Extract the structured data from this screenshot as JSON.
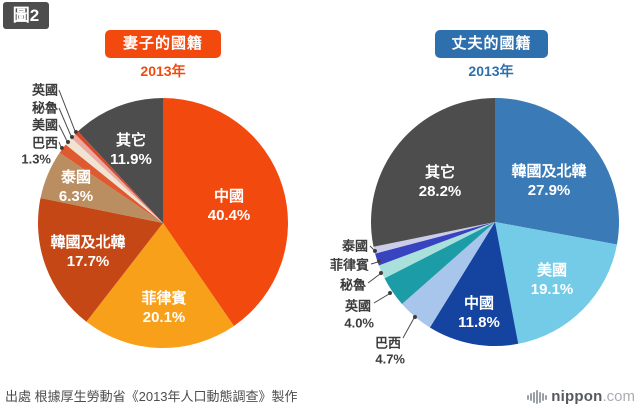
{
  "figure_badge": "圖2",
  "source_note": "出處 根據厚生勞動省《2013年人口動態調查》製作",
  "brand": {
    "icon": "soundwave-bars-icon",
    "name": "nippon",
    "suffix": ".com"
  },
  "chart_data": [
    {
      "type": "pie",
      "title": "妻子的國籍",
      "subtitle": "2013年",
      "accent_color": "#F2490F",
      "legend_position": "none",
      "start_angle_deg": 0,
      "direction": "clockwise",
      "slices": [
        {
          "label": "中國",
          "value": 40.4,
          "pct": "40.4%",
          "color": "#F2490F"
        },
        {
          "label": "菲律賓",
          "value": 20.1,
          "pct": "20.1%",
          "color": "#F9A01B"
        },
        {
          "label": "韓國及北韓",
          "value": 17.7,
          "pct": "17.7%",
          "color": "#C54716"
        },
        {
          "label": "泰國",
          "value": 6.3,
          "pct": "6.3%",
          "color": "#BA8E60"
        },
        {
          "label": "巴西",
          "value": 1.3,
          "pct": "1.3%",
          "color": "#E05A31"
        },
        {
          "label": "美國",
          "value": 1.1,
          "color": "#F0E3D1"
        },
        {
          "label": "秘魯",
          "value": 0.7,
          "color": "#ECA9A0"
        },
        {
          "label": "英國",
          "value": 0.5,
          "color": "#D8492B"
        },
        {
          "label": "其它",
          "value": 11.9,
          "pct": "11.9%",
          "color": "#4D4D4D"
        }
      ]
    },
    {
      "type": "pie",
      "title": "丈夫的國籍",
      "subtitle": "2013年",
      "accent_color": "#2E6FAD",
      "legend_position": "none",
      "start_angle_deg": 0,
      "direction": "clockwise",
      "slices": [
        {
          "label": "韓國及北韓",
          "value": 27.9,
          "pct": "27.9%",
          "color": "#3A7AB6"
        },
        {
          "label": "美國",
          "value": 19.1,
          "pct": "19.1%",
          "color": "#74CBE8"
        },
        {
          "label": "中國",
          "value": 11.8,
          "pct": "11.8%",
          "color": "#14449F"
        },
        {
          "label": "巴西",
          "value": 4.7,
          "pct": "4.7%",
          "color": "#A8C5EB"
        },
        {
          "label": "英國",
          "value": 4.0,
          "pct": "4.0%",
          "color": "#1B9CA6"
        },
        {
          "label": "秘魯",
          "value": 1.8,
          "color": "#A9E0DB"
        },
        {
          "label": "菲律賓",
          "value": 1.6,
          "color": "#3743BF"
        },
        {
          "label": "泰國",
          "value": 0.9,
          "color": "#CBCDE9"
        },
        {
          "label": "其它",
          "value": 28.2,
          "pct": "28.2%",
          "color": "#4D4D4D"
        }
      ]
    }
  ]
}
